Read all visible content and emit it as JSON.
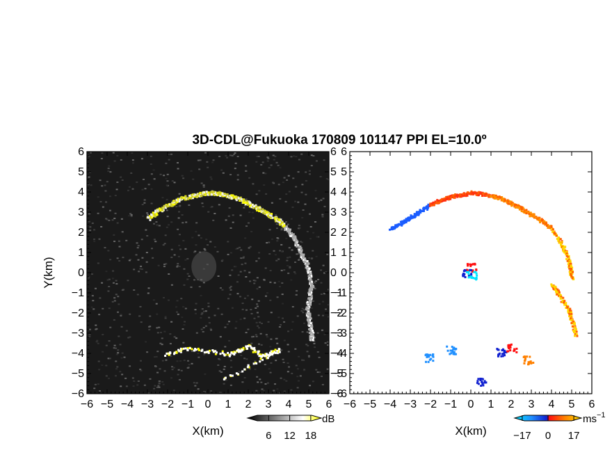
{
  "chart_data": {
    "title": "3D-CDL@Fukuoka 170809 101147 PPI EL=10.0º",
    "panels": [
      {
        "type": "heatmap",
        "variable": "SNR",
        "xlabel": "X(km)",
        "ylabel": "Y(km)",
        "xlim": [
          -6,
          6
        ],
        "ylim": [
          -6,
          6
        ],
        "xticks": [
          "−6",
          "−5",
          "−4",
          "−3",
          "−2",
          "−1",
          "0",
          "1",
          "2",
          "3",
          "4",
          "5",
          "6"
        ],
        "yticks": [
          "−6",
          "−5",
          "−4",
          "−3",
          "−2",
          "−1",
          "0",
          "1",
          "2",
          "3",
          "4",
          "5",
          "6"
        ],
        "background": "#1a1a1a",
        "colorbar": {
          "unit": "dB",
          "ticks": [
            "6",
            "12",
            "18"
          ],
          "range": [
            0,
            21
          ],
          "colors": [
            "#000000",
            "#ffffff",
            "#ffff00"
          ]
        },
        "echo_segments": [
          {
            "name": "arc-north",
            "points": [
              [
                -3.0,
                2.75
              ],
              [
                -2.5,
                3.1
              ],
              [
                -2.0,
                3.4
              ],
              [
                -1.5,
                3.65
              ],
              [
                -1.0,
                3.8
              ],
              [
                -0.5,
                3.9
              ],
              [
                0.0,
                4.0
              ],
              [
                0.5,
                3.95
              ],
              [
                1.0,
                3.85
              ],
              [
                1.5,
                3.7
              ],
              [
                2.0,
                3.45
              ],
              [
                2.5,
                3.2
              ],
              [
                3.0,
                2.9
              ],
              [
                3.5,
                2.6
              ],
              [
                3.8,
                2.3
              ]
            ],
            "level": "strong"
          },
          {
            "name": "arc-east",
            "points": [
              [
                3.8,
                2.3
              ],
              [
                4.2,
                1.8
              ],
              [
                4.5,
                1.2
              ],
              [
                4.8,
                0.6
              ],
              [
                5.0,
                0.0
              ],
              [
                5.1,
                -0.6
              ],
              [
                5.0,
                -1.2
              ],
              [
                4.9,
                -1.8
              ],
              [
                5.0,
                -2.4
              ],
              [
                5.1,
                -3.0
              ],
              [
                5.1,
                -3.3
              ]
            ],
            "level": "weak"
          },
          {
            "name": "south-clusters",
            "points": [
              [
                -2.1,
                -4.0
              ],
              [
                -1.0,
                -3.7
              ],
              [
                1.0,
                -4.0
              ],
              [
                2.0,
                -3.6
              ],
              [
                2.7,
                -4.1
              ],
              [
                3.5,
                -3.8
              ],
              [
                0.5,
                -5.4
              ]
            ],
            "level": "mixed"
          }
        ]
      },
      {
        "type": "heatmap",
        "variable": "Doppler velocity",
        "xlabel": "X(km)",
        "xlim": [
          -6,
          6
        ],
        "ylim": [
          -6,
          6
        ],
        "xticks": [
          "−6",
          "−5",
          "−4",
          "−3",
          "−2",
          "−1",
          "0",
          "1",
          "2",
          "3",
          "4",
          "5",
          "6"
        ],
        "yticks": [
          "−6",
          "−5",
          "−4",
          "−3",
          "−2",
          "−1",
          "0",
          "1",
          "2",
          "3",
          "4",
          "5",
          "6"
        ],
        "background": "#ffffff",
        "colorbar": {
          "unit": "ms",
          "unit_exp": "−1",
          "ticks": [
            "−17",
            "0",
            "17"
          ],
          "range": [
            -22,
            22
          ],
          "colors": [
            "#00e5ff",
            "#2090ff",
            "#1020d0",
            "#ff1010",
            "#ff8000",
            "#ffe000"
          ]
        },
        "echo_segments": [
          {
            "name": "arc-west",
            "points": [
              [
                -4.0,
                2.2
              ],
              [
                -3.5,
                2.5
              ],
              [
                -3.0,
                2.8
              ],
              [
                -2.5,
                3.1
              ],
              [
                -2.0,
                3.4
              ]
            ],
            "velocity": -15
          },
          {
            "name": "arc-north",
            "points": [
              [
                -2.0,
                3.4
              ],
              [
                -1.5,
                3.65
              ],
              [
                -1.0,
                3.8
              ],
              [
                -0.5,
                3.9
              ],
              [
                0.0,
                4.0
              ],
              [
                0.5,
                3.95
              ],
              [
                1.0,
                3.85
              ]
            ],
            "velocity": 4
          },
          {
            "name": "arc-northeast",
            "points": [
              [
                1.0,
                3.85
              ],
              [
                1.5,
                3.7
              ],
              [
                2.0,
                3.45
              ],
              [
                2.5,
                3.2
              ],
              [
                3.0,
                2.9
              ],
              [
                3.5,
                2.6
              ],
              [
                4.0,
                2.2
              ]
            ],
            "velocity": 10
          },
          {
            "name": "arc-east",
            "points": [
              [
                4.0,
                2.2
              ],
              [
                4.4,
                1.6
              ],
              [
                4.7,
                1.0
              ],
              [
                4.9,
                0.3
              ],
              [
                5.0,
                -0.3
              ]
            ],
            "velocity": 16
          },
          {
            "name": "arc-east-lower",
            "points": [
              [
                4.0,
                -0.6
              ],
              [
                4.3,
                -1.0
              ],
              [
                4.8,
                -1.8
              ],
              [
                5.0,
                -2.4
              ],
              [
                5.2,
                -3.1
              ]
            ],
            "velocity": 14
          }
        ]
      }
    ]
  }
}
